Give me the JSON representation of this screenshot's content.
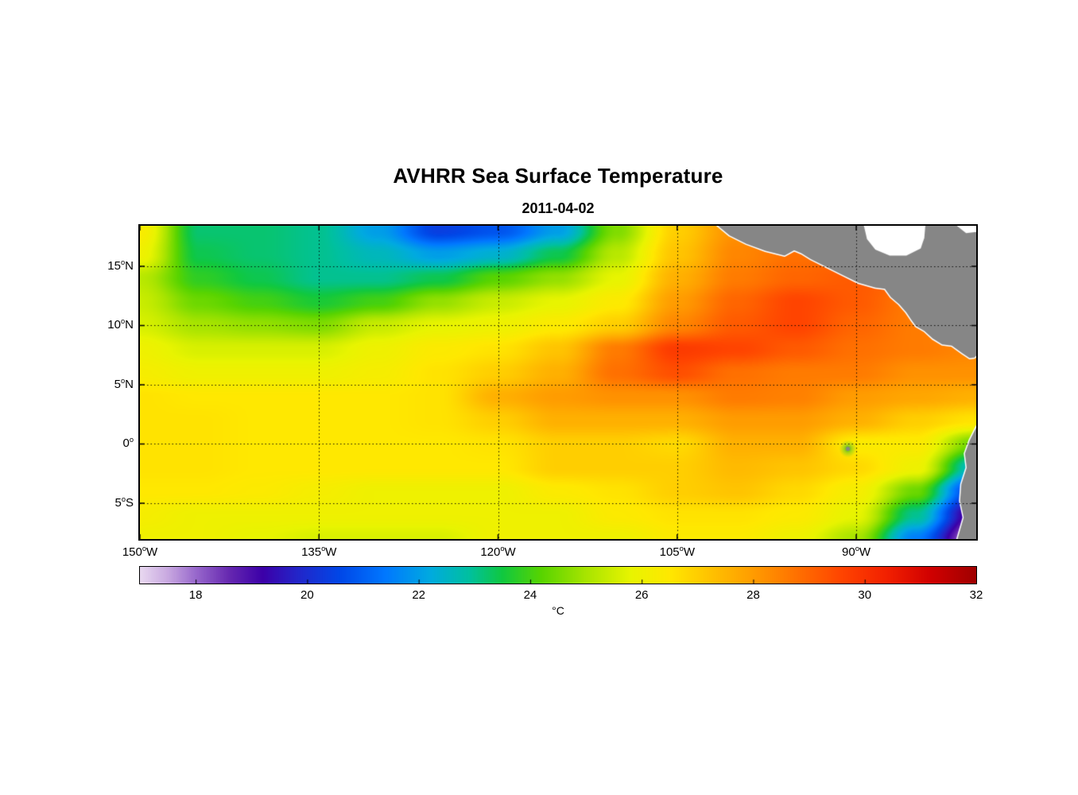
{
  "page": {
    "background": "#FFFFFF"
  },
  "chart_data": {
    "type": "heatmap",
    "title": "AVHRR Sea Surface Temperature",
    "subtitle": "2011-04-02",
    "lon_range": [
      -150,
      -79.95
    ],
    "lat_range": [
      -8.02,
      18.42
    ],
    "x_ticks": [
      {
        "lon": -150,
        "label": "150°W"
      },
      {
        "lon": -135,
        "label": "135°W"
      },
      {
        "lon": -120,
        "label": "120°W"
      },
      {
        "lon": -105,
        "label": "105°W"
      },
      {
        "lon": -90,
        "label": "90°W"
      }
    ],
    "y_ticks": [
      {
        "lat": 15,
        "label": "15°N"
      },
      {
        "lat": 10,
        "label": "10°N"
      },
      {
        "lat": 5,
        "label": "5°N"
      },
      {
        "lat": 0,
        "label": "0°"
      },
      {
        "lat": -5,
        "label": "5°S"
      }
    ],
    "grid_lons": [
      -135,
      -120,
      -105,
      -90
    ],
    "grid_lats": [
      15,
      10,
      5,
      0,
      -5
    ],
    "colorbar": {
      "min": 17,
      "max": 32,
      "tick_values": [
        18,
        20,
        22,
        24,
        26,
        28,
        30,
        32
      ],
      "label": "°C",
      "stops": [
        [
          17.0,
          "#E8D8F0"
        ],
        [
          17.5,
          "#C8A8E0"
        ],
        [
          18.0,
          "#9868CC"
        ],
        [
          18.6,
          "#6628B0"
        ],
        [
          19.2,
          "#3C00A8"
        ],
        [
          19.8,
          "#2424C8"
        ],
        [
          20.6,
          "#0048E8"
        ],
        [
          21.4,
          "#0078FF"
        ],
        [
          22.2,
          "#00AAE0"
        ],
        [
          22.9,
          "#00C0A0"
        ],
        [
          23.5,
          "#10C840"
        ],
        [
          24.2,
          "#58D400"
        ],
        [
          25.0,
          "#A8E400"
        ],
        [
          25.8,
          "#E8F400"
        ],
        [
          26.5,
          "#FFE800"
        ],
        [
          27.2,
          "#FFC400"
        ],
        [
          28.0,
          "#FF9C00"
        ],
        [
          28.8,
          "#FF7000"
        ],
        [
          29.6,
          "#FF4400"
        ],
        [
          30.4,
          "#F22000"
        ],
        [
          31.2,
          "#D00000"
        ],
        [
          32.0,
          "#A00000"
        ]
      ]
    },
    "sst_grid": {
      "lons": [
        -150,
        -145,
        -140,
        -135,
        -130,
        -125,
        -120,
        -115,
        -110,
        -105,
        -100,
        -95,
        -90,
        -85,
        -80
      ],
      "lats": [
        18,
        16,
        14,
        12,
        10,
        8,
        6,
        4,
        2,
        0,
        -2,
        -4,
        -6,
        -8
      ],
      "values_degC": [
        [
          26.3,
          23.2,
          23.2,
          23.0,
          22.0,
          20.4,
          20.8,
          22.0,
          24.6,
          27.0,
          28.2,
          28.8,
          29.0,
          29.0,
          29.0
        ],
        [
          26.0,
          23.4,
          23.2,
          23.0,
          22.6,
          22.0,
          22.4,
          23.4,
          25.2,
          27.2,
          28.4,
          28.8,
          29.0,
          29.0,
          29.0
        ],
        [
          25.2,
          23.8,
          23.4,
          23.0,
          23.0,
          23.4,
          24.2,
          24.8,
          25.8,
          27.6,
          28.6,
          29.0,
          29.2,
          29.0,
          28.8
        ],
        [
          25.4,
          24.4,
          24.0,
          23.6,
          24.0,
          24.8,
          25.4,
          25.8,
          26.4,
          28.0,
          29.0,
          29.6,
          29.2,
          28.6,
          28.4
        ],
        [
          25.6,
          25.0,
          24.8,
          24.6,
          25.4,
          25.8,
          26.0,
          26.4,
          27.0,
          28.4,
          29.2,
          29.6,
          29.0,
          28.6,
          28.2
        ],
        [
          26.0,
          25.6,
          25.6,
          25.6,
          26.0,
          26.4,
          26.6,
          27.2,
          28.6,
          29.8,
          29.6,
          29.2,
          28.8,
          28.6,
          28.4
        ],
        [
          26.2,
          26.0,
          26.0,
          26.0,
          26.2,
          26.6,
          27.0,
          27.6,
          28.8,
          29.4,
          28.8,
          28.6,
          28.6,
          28.2,
          28.2
        ],
        [
          26.6,
          26.5,
          26.5,
          26.5,
          26.5,
          26.6,
          27.6,
          28.0,
          28.2,
          28.2,
          28.6,
          28.5,
          28.0,
          27.8,
          27.6
        ],
        [
          26.6,
          26.6,
          26.5,
          26.5,
          26.5,
          26.6,
          27.0,
          27.6,
          27.6,
          27.6,
          28.0,
          28.0,
          27.6,
          27.0,
          26.6
        ],
        [
          26.6,
          26.6,
          26.5,
          26.5,
          26.5,
          26.5,
          26.6,
          27.0,
          27.0,
          26.8,
          27.6,
          27.6,
          26.4,
          26.4,
          24.4
        ],
        [
          26.6,
          26.6,
          26.5,
          26.5,
          26.5,
          26.5,
          26.5,
          27.0,
          27.0,
          27.0,
          27.4,
          27.2,
          26.8,
          26.0,
          22.4
        ],
        [
          26.5,
          26.5,
          26.4,
          26.2,
          26.0,
          26.0,
          26.0,
          26.4,
          26.6,
          27.0,
          27.2,
          26.8,
          26.2,
          24.4,
          20.2
        ],
        [
          26.2,
          26.0,
          26.0,
          26.0,
          26.0,
          26.0,
          26.0,
          26.0,
          26.4,
          26.6,
          26.6,
          26.4,
          25.8,
          23.0,
          18.6
        ],
        [
          26.0,
          26.0,
          25.8,
          25.6,
          25.6,
          25.6,
          26.0,
          26.0,
          26.0,
          26.4,
          26.4,
          26.0,
          25.0,
          21.5,
          17.4
        ]
      ]
    },
    "land": {
      "fill": "#868686",
      "coast_halo": "#FFFFFF",
      "central_america": [
        [
          -101.8,
          18.6
        ],
        [
          -100.6,
          17.6
        ],
        [
          -99.2,
          16.9
        ],
        [
          -97.6,
          16.3
        ],
        [
          -96.0,
          15.9
        ],
        [
          -95.2,
          16.35
        ],
        [
          -94.6,
          16.1
        ],
        [
          -93.8,
          15.6
        ],
        [
          -92.6,
          15.0
        ],
        [
          -91.2,
          14.3
        ],
        [
          -89.8,
          13.6
        ],
        [
          -88.4,
          13.2
        ],
        [
          -87.6,
          13.1
        ],
        [
          -87.1,
          12.4
        ],
        [
          -86.4,
          11.8
        ],
        [
          -85.8,
          11.1
        ],
        [
          -85.4,
          10.5
        ],
        [
          -85.0,
          9.95
        ],
        [
          -84.3,
          9.55
        ],
        [
          -83.6,
          8.9
        ],
        [
          -82.8,
          8.4
        ],
        [
          -82.0,
          8.3
        ],
        [
          -81.1,
          7.65
        ],
        [
          -80.5,
          7.25
        ],
        [
          -80.1,
          7.3
        ],
        [
          -79.5,
          7.9
        ],
        [
          -79.0,
          8.2
        ],
        [
          -79.0,
          19.0
        ],
        [
          -102.0,
          19.0
        ]
      ],
      "south_america": [
        [
          -79.9,
          1.5
        ],
        [
          -80.5,
          0.3
        ],
        [
          -80.9,
          -0.8
        ],
        [
          -80.75,
          -2.0
        ],
        [
          -81.2,
          -3.4
        ],
        [
          -81.3,
          -4.8
        ],
        [
          -81.0,
          -6.2
        ],
        [
          -81.6,
          -8.3
        ],
        [
          -79.0,
          -8.3
        ],
        [
          -79.0,
          1.5
        ]
      ],
      "no_data_regions": [
        [
          [
            -89.4,
            18.6
          ],
          [
            -89.1,
            17.3
          ],
          [
            -88.4,
            16.4
          ],
          [
            -87.2,
            15.9
          ],
          [
            -85.8,
            15.9
          ],
          [
            -84.6,
            16.5
          ],
          [
            -84.3,
            17.4
          ],
          [
            -84.2,
            18.6
          ]
        ],
        [
          [
            -81.8,
            18.6
          ],
          [
            -80.8,
            17.8
          ],
          [
            -79.9,
            17.9
          ],
          [
            -79.0,
            18.1
          ],
          [
            -79.0,
            18.6
          ]
        ]
      ]
    },
    "features": {
      "galapagos": {
        "lon": -90.7,
        "lat": -0.4,
        "cool_patch_sst": 24.0,
        "island_color": "#868686"
      }
    }
  }
}
